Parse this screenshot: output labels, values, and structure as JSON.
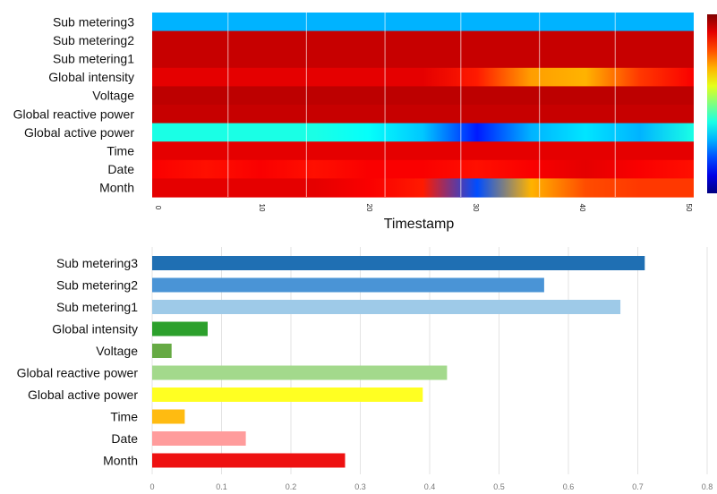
{
  "chart_data": [
    {
      "type": "heatmap",
      "title": "",
      "xlabel": "Timestamp",
      "ylabel": "",
      "rows": [
        "Sub metering3",
        "Sub metering2",
        "Sub metering1",
        "Global intensity",
        "Voltage",
        "Global reactive power",
        "Global active power",
        "Time",
        "Date",
        "Month"
      ],
      "x_ticks": [
        "0",
        "10",
        "20",
        "30",
        "40",
        "50"
      ],
      "x_range": [
        0,
        50
      ],
      "value_range": [
        0,
        1
      ],
      "grid": false,
      "legend": "colorbar-right",
      "colormap": "jet",
      "row_levels": [
        [
          0.3,
          0.3,
          0.3,
          0.3,
          0.3,
          0.3,
          0.3,
          0.3,
          0.3,
          0.3,
          0.3
        ],
        [
          0.93,
          0.93,
          0.93,
          0.93,
          0.93,
          0.93,
          0.93,
          0.93,
          0.93,
          0.93,
          0.93
        ],
        [
          0.93,
          0.93,
          0.93,
          0.93,
          0.93,
          0.93,
          0.93,
          0.93,
          0.93,
          0.93,
          0.93
        ],
        [
          0.9,
          0.9,
          0.9,
          0.9,
          0.9,
          0.9,
          0.85,
          0.72,
          0.7,
          0.82,
          0.88
        ],
        [
          0.94,
          0.94,
          0.94,
          0.94,
          0.94,
          0.94,
          0.94,
          0.94,
          0.94,
          0.94,
          0.94
        ],
        [
          0.93,
          0.93,
          0.93,
          0.93,
          0.93,
          0.93,
          0.93,
          0.93,
          0.93,
          0.93,
          0.93
        ],
        [
          0.4,
          0.4,
          0.4,
          0.4,
          0.38,
          0.32,
          0.15,
          0.3,
          0.35,
          0.3,
          0.4
        ],
        [
          0.9,
          0.9,
          0.9,
          0.9,
          0.9,
          0.9,
          0.9,
          0.9,
          0.9,
          0.9,
          0.9
        ],
        [
          0.88,
          0.86,
          0.88,
          0.86,
          0.88,
          0.88,
          0.86,
          0.88,
          0.9,
          0.88,
          0.86
        ],
        [
          0.9,
          0.9,
          0.9,
          0.9,
          0.88,
          0.85,
          0.2,
          0.7,
          0.8,
          0.82,
          0.82
        ]
      ]
    },
    {
      "type": "bar",
      "orientation": "horizontal",
      "title": "",
      "xlabel": "",
      "ylabel": "",
      "categories": [
        "Sub metering3",
        "Sub metering2",
        "Sub metering1",
        "Global intensity",
        "Voltage",
        "Global reactive power",
        "Global active power",
        "Time",
        "Date",
        "Month"
      ],
      "values": [
        0.71,
        0.565,
        0.675,
        0.08,
        0.028,
        0.425,
        0.39,
        0.047,
        0.135,
        0.278
      ],
      "colors": [
        "#1f6fb3",
        "#4a94d6",
        "#9ecae8",
        "#2ca02c",
        "#66aa44",
        "#a3d98c",
        "#ffff22",
        "#ffbb11",
        "#ff9c9c",
        "#ee1111"
      ],
      "x_ticks": [
        "0",
        "0.1",
        "0.2",
        "0.3",
        "0.4",
        "0.5",
        "0.6",
        "0.7",
        "0.8"
      ],
      "xlim": [
        0,
        0.8
      ],
      "grid": true
    }
  ]
}
